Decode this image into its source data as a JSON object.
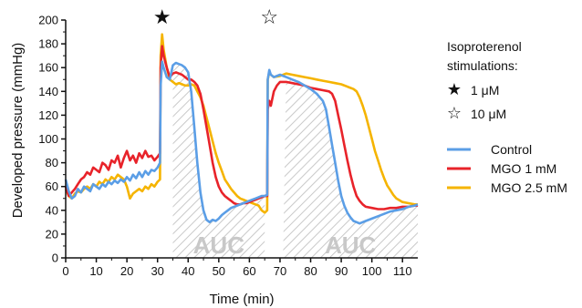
{
  "chart_data": {
    "type": "line",
    "xlabel": "Time (min)",
    "ylabel": "Developed pressure (mmHg)",
    "xlim": [
      0,
      115
    ],
    "ylim": [
      0,
      200
    ],
    "xticks": [
      0,
      10,
      20,
      30,
      40,
      50,
      60,
      70,
      80,
      90,
      100,
      110
    ],
    "yticks": [
      0,
      20,
      40,
      60,
      80,
      100,
      120,
      140,
      160,
      180,
      200
    ],
    "grid": false,
    "legend": {
      "title": "Isoproterenol stimulations:",
      "markers": [
        {
          "symbol": "★",
          "label": "1 μM"
        },
        {
          "symbol": "☆",
          "label": "10 μM"
        }
      ],
      "placement": "right"
    },
    "stimulations": [
      {
        "x": 31.5,
        "symbol": "★"
      },
      {
        "x": 66.5,
        "symbol": "☆"
      }
    ],
    "auc_regions": [
      {
        "label": "AUC",
        "x_start": 35,
        "x_end": 65
      },
      {
        "label": "AUC",
        "x_start": 71,
        "x_end": 115
      }
    ],
    "series": [
      {
        "name": "Control",
        "color": "#5b9ee6",
        "points": [
          [
            0,
            66
          ],
          [
            1,
            56
          ],
          [
            2,
            50
          ],
          [
            3,
            52
          ],
          [
            4,
            58
          ],
          [
            5,
            55
          ],
          [
            6,
            60
          ],
          [
            7,
            58
          ],
          [
            8,
            56
          ],
          [
            9,
            62
          ],
          [
            10,
            60
          ],
          [
            11,
            58
          ],
          [
            12,
            62
          ],
          [
            13,
            60
          ],
          [
            14,
            64
          ],
          [
            15,
            62
          ],
          [
            16,
            65
          ],
          [
            17,
            63
          ],
          [
            18,
            66
          ],
          [
            19,
            64
          ],
          [
            20,
            68
          ],
          [
            21,
            65
          ],
          [
            22,
            70
          ],
          [
            23,
            67
          ],
          [
            24,
            72
          ],
          [
            25,
            68
          ],
          [
            26,
            73
          ],
          [
            27,
            70
          ],
          [
            28,
            74
          ],
          [
            29,
            73
          ],
          [
            30,
            76
          ],
          [
            30.8,
            80
          ],
          [
            31,
            145
          ],
          [
            31.5,
            165
          ],
          [
            32,
            160
          ],
          [
            33,
            152
          ],
          [
            34,
            150
          ],
          [
            35,
            162
          ],
          [
            36,
            164
          ],
          [
            37,
            163
          ],
          [
            38,
            162
          ],
          [
            39,
            160
          ],
          [
            40,
            156
          ],
          [
            41,
            140
          ],
          [
            42,
            110
          ],
          [
            43,
            80
          ],
          [
            44,
            55
          ],
          [
            45,
            40
          ],
          [
            46,
            32
          ],
          [
            47,
            30
          ],
          [
            48,
            32
          ],
          [
            49,
            31
          ],
          [
            50,
            33
          ],
          [
            51,
            36
          ],
          [
            52,
            38
          ],
          [
            53,
            40
          ],
          [
            54,
            42
          ],
          [
            55,
            43
          ],
          [
            56,
            44
          ],
          [
            57,
            45
          ],
          [
            58,
            46
          ],
          [
            59,
            47
          ],
          [
            60,
            48
          ],
          [
            61,
            49
          ],
          [
            62,
            50
          ],
          [
            63,
            51
          ],
          [
            64,
            52
          ],
          [
            65,
            52
          ],
          [
            65.8,
            53
          ],
          [
            66,
            150
          ],
          [
            66.5,
            158
          ],
          [
            67,
            154
          ],
          [
            68,
            152
          ],
          [
            70,
            154
          ],
          [
            72,
            152
          ],
          [
            74,
            150
          ],
          [
            76,
            148
          ],
          [
            78,
            145
          ],
          [
            80,
            142
          ],
          [
            82,
            138
          ],
          [
            84,
            132
          ],
          [
            85,
            125
          ],
          [
            86,
            110
          ],
          [
            87,
            95
          ],
          [
            88,
            80
          ],
          [
            89,
            65
          ],
          [
            90,
            52
          ],
          [
            91,
            44
          ],
          [
            92,
            38
          ],
          [
            93,
            34
          ],
          [
            94,
            31
          ],
          [
            95,
            30
          ],
          [
            96,
            29
          ],
          [
            97,
            30
          ],
          [
            98,
            31
          ],
          [
            100,
            33
          ],
          [
            102,
            35
          ],
          [
            104,
            37
          ],
          [
            106,
            39
          ],
          [
            108,
            40
          ],
          [
            110,
            41
          ],
          [
            112,
            43
          ],
          [
            114,
            44
          ],
          [
            115,
            45
          ]
        ]
      },
      {
        "name": "MGO 1 mM",
        "color": "#e8232a",
        "points": [
          [
            0,
            60
          ],
          [
            1,
            52
          ],
          [
            2,
            55
          ],
          [
            3,
            58
          ],
          [
            4,
            62
          ],
          [
            5,
            66
          ],
          [
            6,
            68
          ],
          [
            7,
            72
          ],
          [
            8,
            70
          ],
          [
            9,
            76
          ],
          [
            10,
            74
          ],
          [
            11,
            72
          ],
          [
            12,
            80
          ],
          [
            13,
            78
          ],
          [
            14,
            74
          ],
          [
            15,
            82
          ],
          [
            16,
            80
          ],
          [
            17,
            86
          ],
          [
            18,
            76
          ],
          [
            19,
            84
          ],
          [
            20,
            90
          ],
          [
            21,
            82
          ],
          [
            22,
            86
          ],
          [
            23,
            80
          ],
          [
            24,
            88
          ],
          [
            25,
            84
          ],
          [
            26,
            90
          ],
          [
            27,
            85
          ],
          [
            28,
            86
          ],
          [
            29,
            82
          ],
          [
            30,
            85
          ],
          [
            30.8,
            88
          ],
          [
            31,
            160
          ],
          [
            31.5,
            178
          ],
          [
            32,
            170
          ],
          [
            33,
            160
          ],
          [
            34,
            152
          ],
          [
            35,
            155
          ],
          [
            36,
            156
          ],
          [
            37,
            155
          ],
          [
            38,
            154
          ],
          [
            39,
            152
          ],
          [
            40,
            150
          ],
          [
            41,
            150
          ],
          [
            42,
            148
          ],
          [
            43,
            145
          ],
          [
            44,
            138
          ],
          [
            45,
            125
          ],
          [
            46,
            110
          ],
          [
            47,
            95
          ],
          [
            48,
            80
          ],
          [
            49,
            68
          ],
          [
            50,
            60
          ],
          [
            51,
            55
          ],
          [
            52,
            52
          ],
          [
            53,
            50
          ],
          [
            54,
            48
          ],
          [
            55,
            46
          ],
          [
            56,
            45
          ],
          [
            57,
            45
          ],
          [
            58,
            46
          ],
          [
            59,
            46
          ],
          [
            60,
            47
          ],
          [
            61,
            48
          ],
          [
            62,
            49
          ],
          [
            63,
            50
          ],
          [
            64,
            51
          ],
          [
            65,
            52
          ],
          [
            65.8,
            52
          ],
          [
            66,
            125
          ],
          [
            66.5,
            132
          ],
          [
            67,
            128
          ],
          [
            68,
            140
          ],
          [
            69,
            145
          ],
          [
            70,
            148
          ],
          [
            72,
            148
          ],
          [
            74,
            147
          ],
          [
            76,
            146
          ],
          [
            78,
            145
          ],
          [
            80,
            143
          ],
          [
            82,
            142
          ],
          [
            84,
            141
          ],
          [
            86,
            140
          ],
          [
            87,
            138
          ],
          [
            88,
            132
          ],
          [
            89,
            120
          ],
          [
            90,
            108
          ],
          [
            91,
            95
          ],
          [
            92,
            82
          ],
          [
            93,
            70
          ],
          [
            94,
            60
          ],
          [
            95,
            52
          ],
          [
            96,
            48
          ],
          [
            97,
            45
          ],
          [
            98,
            43
          ],
          [
            100,
            42
          ],
          [
            102,
            41
          ],
          [
            104,
            41
          ],
          [
            106,
            42
          ],
          [
            108,
            42
          ],
          [
            110,
            43
          ],
          [
            112,
            43
          ],
          [
            114,
            44
          ],
          [
            115,
            44
          ]
        ]
      },
      {
        "name": "MGO 2.5 mM",
        "color": "#f5b400",
        "points": [
          [
            0,
            58
          ],
          [
            1,
            52
          ],
          [
            2,
            50
          ],
          [
            3,
            54
          ],
          [
            4,
            56
          ],
          [
            5,
            55
          ],
          [
            6,
            58
          ],
          [
            7,
            60
          ],
          [
            8,
            58
          ],
          [
            9,
            62
          ],
          [
            10,
            60
          ],
          [
            11,
            64
          ],
          [
            12,
            62
          ],
          [
            13,
            66
          ],
          [
            14,
            64
          ],
          [
            15,
            68
          ],
          [
            16,
            66
          ],
          [
            17,
            70
          ],
          [
            18,
            68
          ],
          [
            19,
            66
          ],
          [
            20,
            60
          ],
          [
            21,
            50
          ],
          [
            22,
            54
          ],
          [
            23,
            56
          ],
          [
            24,
            58
          ],
          [
            25,
            56
          ],
          [
            26,
            60
          ],
          [
            27,
            58
          ],
          [
            28,
            62
          ],
          [
            29,
            60
          ],
          [
            30,
            64
          ],
          [
            30.8,
            66
          ],
          [
            31,
            170
          ],
          [
            31.5,
            188
          ],
          [
            32,
            175
          ],
          [
            33,
            160
          ],
          [
            34,
            150
          ],
          [
            35,
            148
          ],
          [
            36,
            146
          ],
          [
            37,
            147
          ],
          [
            38,
            146
          ],
          [
            39,
            145
          ],
          [
            40,
            145
          ],
          [
            41,
            146
          ],
          [
            42,
            145
          ],
          [
            43,
            140
          ],
          [
            44,
            135
          ],
          [
            45,
            128
          ],
          [
            46,
            118
          ],
          [
            47,
            108
          ],
          [
            48,
            98
          ],
          [
            49,
            88
          ],
          [
            50,
            80
          ],
          [
            51,
            73
          ],
          [
            52,
            66
          ],
          [
            53,
            62
          ],
          [
            54,
            58
          ],
          [
            55,
            55
          ],
          [
            56,
            52
          ],
          [
            57,
            50
          ],
          [
            58,
            49
          ],
          [
            59,
            48
          ],
          [
            60,
            47
          ],
          [
            61,
            46
          ],
          [
            62,
            45
          ],
          [
            63,
            44
          ],
          [
            64,
            40
          ],
          [
            65,
            38
          ],
          [
            65.8,
            40
          ],
          [
            66,
            150
          ],
          [
            66.5,
            156
          ],
          [
            67,
            154
          ],
          [
            68,
            152
          ],
          [
            70,
            153
          ],
          [
            72,
            155
          ],
          [
            74,
            154
          ],
          [
            76,
            153
          ],
          [
            78,
            152
          ],
          [
            80,
            151
          ],
          [
            82,
            150
          ],
          [
            84,
            149
          ],
          [
            86,
            148
          ],
          [
            88,
            147
          ],
          [
            90,
            146
          ],
          [
            92,
            144
          ],
          [
            94,
            142
          ],
          [
            95,
            140
          ],
          [
            96,
            135
          ],
          [
            97,
            128
          ],
          [
            98,
            120
          ],
          [
            99,
            110
          ],
          [
            100,
            100
          ],
          [
            101,
            90
          ],
          [
            102,
            82
          ],
          [
            103,
            74
          ],
          [
            104,
            67
          ],
          [
            105,
            61
          ],
          [
            106,
            57
          ],
          [
            107,
            53
          ],
          [
            108,
            50
          ],
          [
            110,
            47
          ],
          [
            112,
            46
          ],
          [
            114,
            45
          ],
          [
            115,
            45
          ]
        ]
      }
    ]
  }
}
